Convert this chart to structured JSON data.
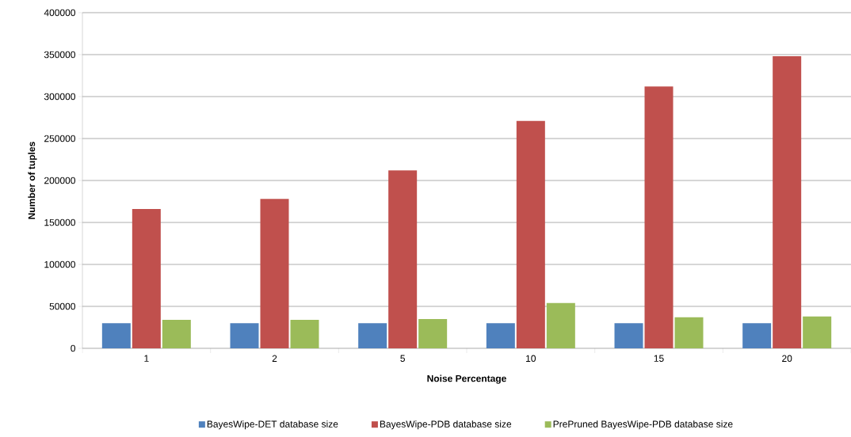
{
  "chart_data": {
    "type": "bar",
    "xlabel": "Noise Percentage",
    "ylabel": "Number of tuples",
    "categories": [
      "1",
      "2",
      "5",
      "10",
      "15",
      "20"
    ],
    "series": [
      {
        "name": "BayesWipe-DET database size",
        "color": "#4f81bd",
        "values": [
          30000,
          30000,
          30000,
          30000,
          30000,
          30000
        ]
      },
      {
        "name": "BayesWipe-PDB database size",
        "color": "#c0504d",
        "values": [
          166000,
          178000,
          212000,
          271000,
          312000,
          348000
        ]
      },
      {
        "name": "PrePruned BayesWipe-PDB  database size",
        "color": "#9bbb59",
        "values": [
          34000,
          34000,
          35000,
          54000,
          37000,
          38000
        ]
      }
    ],
    "ylim": [
      0,
      400000
    ],
    "yticks": [
      0,
      50000,
      100000,
      150000,
      200000,
      250000,
      300000,
      350000,
      400000
    ],
    "grid": "y",
    "legend": "bottom"
  }
}
